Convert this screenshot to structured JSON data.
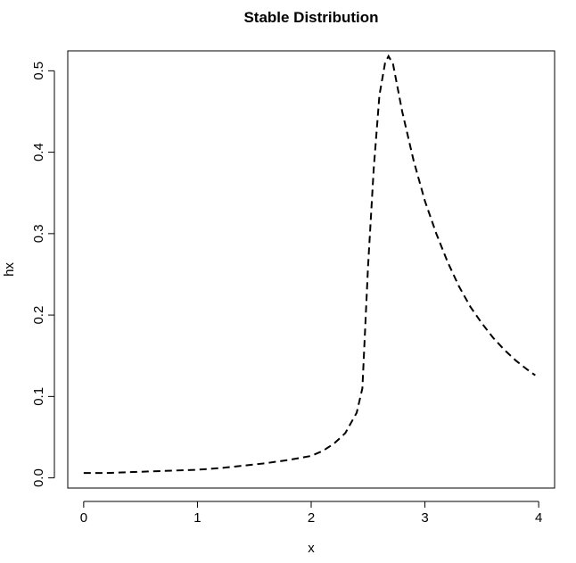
{
  "chart_data": {
    "type": "line",
    "title": "Stable Distribution",
    "xlabel": "x",
    "ylabel": "hx",
    "xlim": [
      -0.14,
      4.14
    ],
    "ylim": [
      -0.0125,
      0.5245
    ],
    "x_ticks": [
      0,
      1,
      2,
      3,
      4
    ],
    "x_tick_labels": [
      "0",
      "1",
      "2",
      "3",
      "4"
    ],
    "y_ticks": [
      0.0,
      0.1,
      0.2,
      0.3,
      0.4,
      0.5
    ],
    "y_tick_labels": [
      "0.0",
      "0.1",
      "0.2",
      "0.3",
      "0.4",
      "0.5"
    ],
    "grid": false,
    "legend": "none",
    "line_style": "dashed",
    "line_color": "#000000",
    "series": [
      {
        "x": [
          0.0,
          0.2,
          0.4,
          0.6,
          0.8,
          1.0,
          1.2,
          1.4,
          1.6,
          1.8,
          2.0,
          2.1,
          2.2,
          2.3,
          2.4,
          2.45,
          2.5,
          2.55,
          2.6,
          2.65,
          2.68,
          2.72,
          2.8,
          2.9,
          3.0,
          3.1,
          3.2,
          3.3,
          3.4,
          3.5,
          3.6,
          3.7,
          3.8,
          3.9,
          3.97
        ],
        "y": [
          0.006,
          0.006,
          0.007,
          0.008,
          0.009,
          0.01,
          0.012,
          0.015,
          0.018,
          0.022,
          0.027,
          0.033,
          0.042,
          0.055,
          0.08,
          0.11,
          0.26,
          0.38,
          0.47,
          0.51,
          0.518,
          0.508,
          0.45,
          0.39,
          0.34,
          0.3,
          0.265,
          0.235,
          0.21,
          0.19,
          0.172,
          0.157,
          0.144,
          0.133,
          0.126
        ]
      }
    ]
  }
}
